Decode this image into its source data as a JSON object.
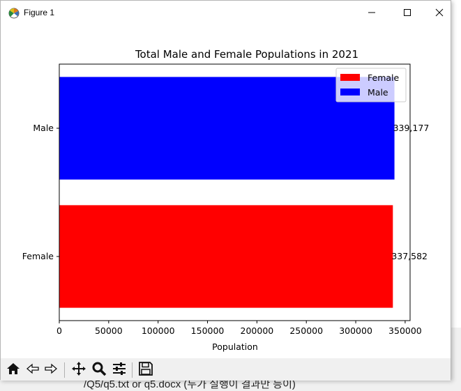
{
  "window": {
    "title": "Figure 1",
    "icon": "matplotlib-icon"
  },
  "toolbar": {
    "tools": [
      "home-icon",
      "back-icon",
      "forward-icon",
      "pan-icon",
      "zoom-icon",
      "configure-subplots-icon",
      "save-icon"
    ]
  },
  "background": {
    "bottom_text": "/Q5/q5.txt or q5.docx (두가 실행이 결과만 등이)"
  },
  "colors": {
    "female": "#ff0000",
    "male": "#0000ff"
  },
  "chart_data": {
    "type": "bar",
    "orientation": "horizontal",
    "title": "Total Male and Female Populations in 2021",
    "xlabel": "Population",
    "ylabel": "",
    "categories": [
      "Female",
      "Male"
    ],
    "values": [
      337582,
      339177
    ],
    "value_labels": [
      "337,582",
      "339,177"
    ],
    "xlim": [
      0,
      355000
    ],
    "xticks": [
      0,
      50000,
      100000,
      150000,
      200000,
      250000,
      300000,
      350000
    ],
    "xtick_labels": [
      "0",
      "50000",
      "100000",
      "150000",
      "200000",
      "250000",
      "300000",
      "350000"
    ],
    "bar_colors": [
      "#ff0000",
      "#0000ff"
    ],
    "legend": {
      "placement": "top-right",
      "entries": [
        {
          "label": "Female",
          "color": "#ff0000"
        },
        {
          "label": "Male",
          "color": "#0000ff"
        }
      ]
    },
    "grid": false
  }
}
